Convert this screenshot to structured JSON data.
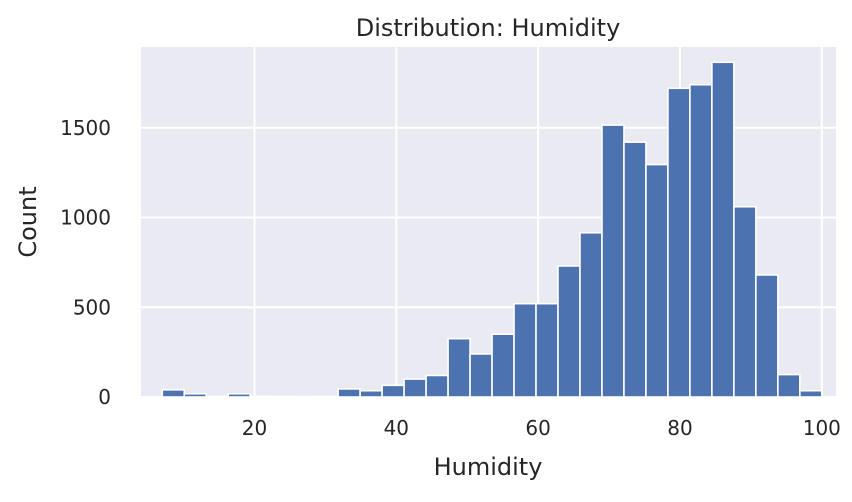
{
  "chart_data": {
    "type": "bar",
    "title": "Distribution: Humidity",
    "xlabel": "Humidity",
    "ylabel": "Count",
    "xlim": [
      4,
      102
    ],
    "ylim": [
      0,
      1950
    ],
    "xticks": [
      20,
      40,
      60,
      80,
      100
    ],
    "yticks": [
      0,
      500,
      1000,
      1500
    ],
    "grid": true,
    "bin_width": 3.1,
    "bin_start": 7,
    "values": [
      40,
      18,
      3,
      18,
      4,
      3,
      2,
      3,
      45,
      35,
      65,
      100,
      120,
      325,
      240,
      350,
      520,
      520,
      730,
      915,
      1515,
      1420,
      1295,
      1720,
      1740,
      1865,
      1060,
      680,
      125,
      35
    ],
    "colors": {
      "bar": "#4c72b0",
      "plot_bg": "#eaeaf2",
      "grid": "#ffffff",
      "text": "#262626"
    }
  }
}
